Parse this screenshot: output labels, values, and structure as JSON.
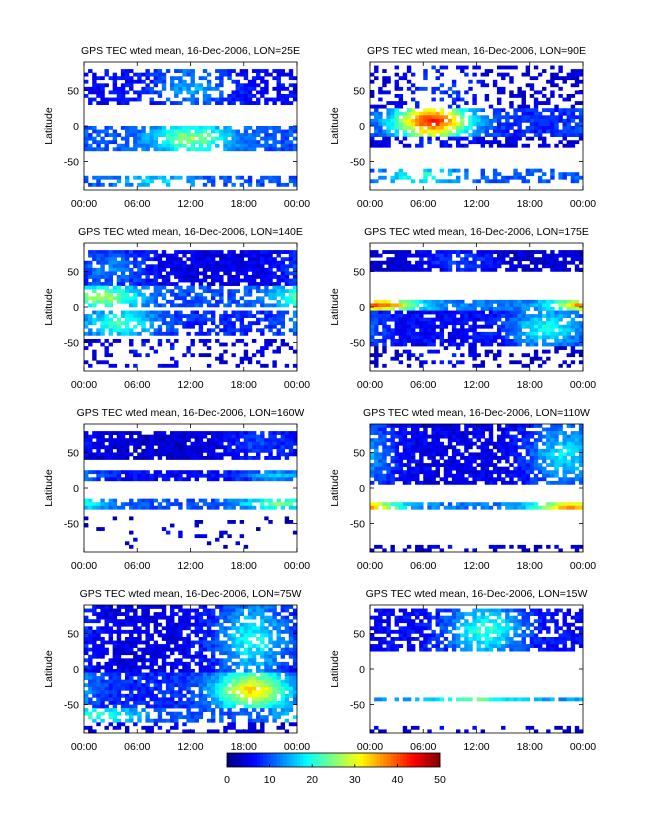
{
  "chart_data": {
    "type": "heatmap",
    "panels": [
      {
        "title": "GPS TEC wted mean, 16-Dec-2006, LON=25E",
        "bands": [
          {
            "lat": [
              28,
              80
            ],
            "base": 6,
            "peak": 15,
            "peak_t": 12,
            "density": 0.62
          },
          {
            "lat": [
              -35,
              0
            ],
            "base": 10,
            "peak": 27,
            "peak_t": 12,
            "density": 0.78
          },
          {
            "lat": [
              -85,
              -70
            ],
            "base": 10,
            "peak": 18,
            "peak_t": 8,
            "density": 0.48
          }
        ]
      },
      {
        "title": "GPS TEC wted mean, 16-Dec-2006, LON=90E",
        "bands": [
          {
            "lat": [
              25,
              85
            ],
            "base": 4,
            "peak": 10,
            "peak_t": 8,
            "density": 0.35
          },
          {
            "lat": [
              -15,
              28
            ],
            "base": 8,
            "peak": 44,
            "peak_t": 7,
            "density": 0.82
          },
          {
            "lat": [
              -30,
              -15
            ],
            "base": 4,
            "peak": 8,
            "peak_t": 8,
            "density": 0.55
          },
          {
            "lat": [
              -78,
              -62
            ],
            "base": 10,
            "peak": 22,
            "peak_t": 6,
            "density": 0.4
          }
        ]
      },
      {
        "title": "GPS TEC wted mean, 16-Dec-2006, LON=140E",
        "bands": [
          {
            "lat": [
              28,
              80
            ],
            "base": 5,
            "peak": 13,
            "peak_t": 3,
            "density": 0.85
          },
          {
            "lat": [
              0,
              28
            ],
            "base": 10,
            "peak": 28,
            "peak_t": 2,
            "density": 0.7
          },
          {
            "lat": [
              -40,
              -5
            ],
            "base": 8,
            "peak": 22,
            "peak_t": 4,
            "density": 0.7
          },
          {
            "lat": [
              -85,
              -45
            ],
            "base": 4,
            "peak": 8,
            "peak_t": 8,
            "density": 0.25
          }
        ]
      },
      {
        "title": "GPS TEC wted mean, 16-Dec-2006, LON=175E",
        "bands": [
          {
            "lat": [
              50,
              82
            ],
            "base": 4,
            "peak": 10,
            "peak_t": 10,
            "density": 0.8
          },
          {
            "lat": [
              -5,
              10
            ],
            "base": 12,
            "peak": 40,
            "peak_t": 1,
            "density": 0.85
          },
          {
            "lat": [
              -55,
              -5
            ],
            "base": 6,
            "peak": 20,
            "peak_t": 20,
            "density": 0.85
          },
          {
            "lat": [
              -85,
              -55
            ],
            "base": 3,
            "peak": 8,
            "peak_t": 8,
            "density": 0.3
          }
        ]
      },
      {
        "title": "GPS TEC wted mean, 16-Dec-2006, LON=160W",
        "bands": [
          {
            "lat": [
              40,
              82
            ],
            "base": 4,
            "peak": 10,
            "peak_t": 20,
            "density": 0.88
          },
          {
            "lat": [
              10,
              25
            ],
            "base": 6,
            "peak": 16,
            "peak_t": 22,
            "density": 0.85
          },
          {
            "lat": [
              -28,
              -15
            ],
            "base": 10,
            "peak": 26,
            "peak_t": 22,
            "density": 0.75
          },
          {
            "lat": [
              -85,
              -40
            ],
            "base": 3,
            "peak": 6,
            "peak_t": 10,
            "density": 0.08
          }
        ]
      },
      {
        "title": "GPS TEC wted mean, 16-Dec-2006, LON=110W",
        "bands": [
          {
            "lat": [
              5,
              88
            ],
            "base": 5,
            "peak": 18,
            "peak_t": 22,
            "density": 0.82
          },
          {
            "lat": [
              -32,
              -20
            ],
            "base": 12,
            "peak": 40,
            "peak_t": 23,
            "density": 0.9
          },
          {
            "lat": [
              -88,
              -80
            ],
            "base": 4,
            "peak": 6,
            "peak_t": 10,
            "density": 0.35
          }
        ]
      },
      {
        "title": "GPS TEC wted mean, 16-Dec-2006, LON=75W",
        "bands": [
          {
            "lat": [
              -5,
              88
            ],
            "base": 5,
            "peak": 20,
            "peak_t": 19,
            "density": 0.78
          },
          {
            "lat": [
              -55,
              -5
            ],
            "base": 8,
            "peak": 34,
            "peak_t": 19,
            "density": 0.88
          },
          {
            "lat": [
              -75,
              -55
            ],
            "base": 10,
            "peak": 22,
            "peak_t": 2,
            "density": 0.6
          },
          {
            "lat": [
              -88,
              -75
            ],
            "base": 4,
            "peak": 6,
            "peak_t": 10,
            "density": 0.3
          }
        ]
      },
      {
        "title": "GPS TEC wted mean, 16-Dec-2006, LON=15W",
        "bands": [
          {
            "lat": [
              25,
              85
            ],
            "base": 6,
            "peak": 22,
            "peak_t": 13,
            "density": 0.72
          },
          {
            "lat": [
              -45,
              -38
            ],
            "base": 14,
            "peak": 24,
            "peak_t": 12,
            "density": 0.75
          },
          {
            "lat": [
              -88,
              -80
            ],
            "base": 4,
            "peak": 6,
            "peak_t": 10,
            "density": 0.2
          }
        ]
      }
    ],
    "x_ticks": [
      "00:00",
      "06:00",
      "12:00",
      "18:00",
      "00:00"
    ],
    "x_range_hours": [
      0,
      24
    ],
    "ylabel": "Latitude",
    "y_ticks": [
      50,
      0,
      -50
    ],
    "y_range": [
      -90,
      90
    ],
    "colorbar": {
      "ticks": [
        0,
        10,
        20,
        30,
        40,
        50
      ],
      "range": [
        0,
        50
      ],
      "colormap": "jet"
    }
  }
}
